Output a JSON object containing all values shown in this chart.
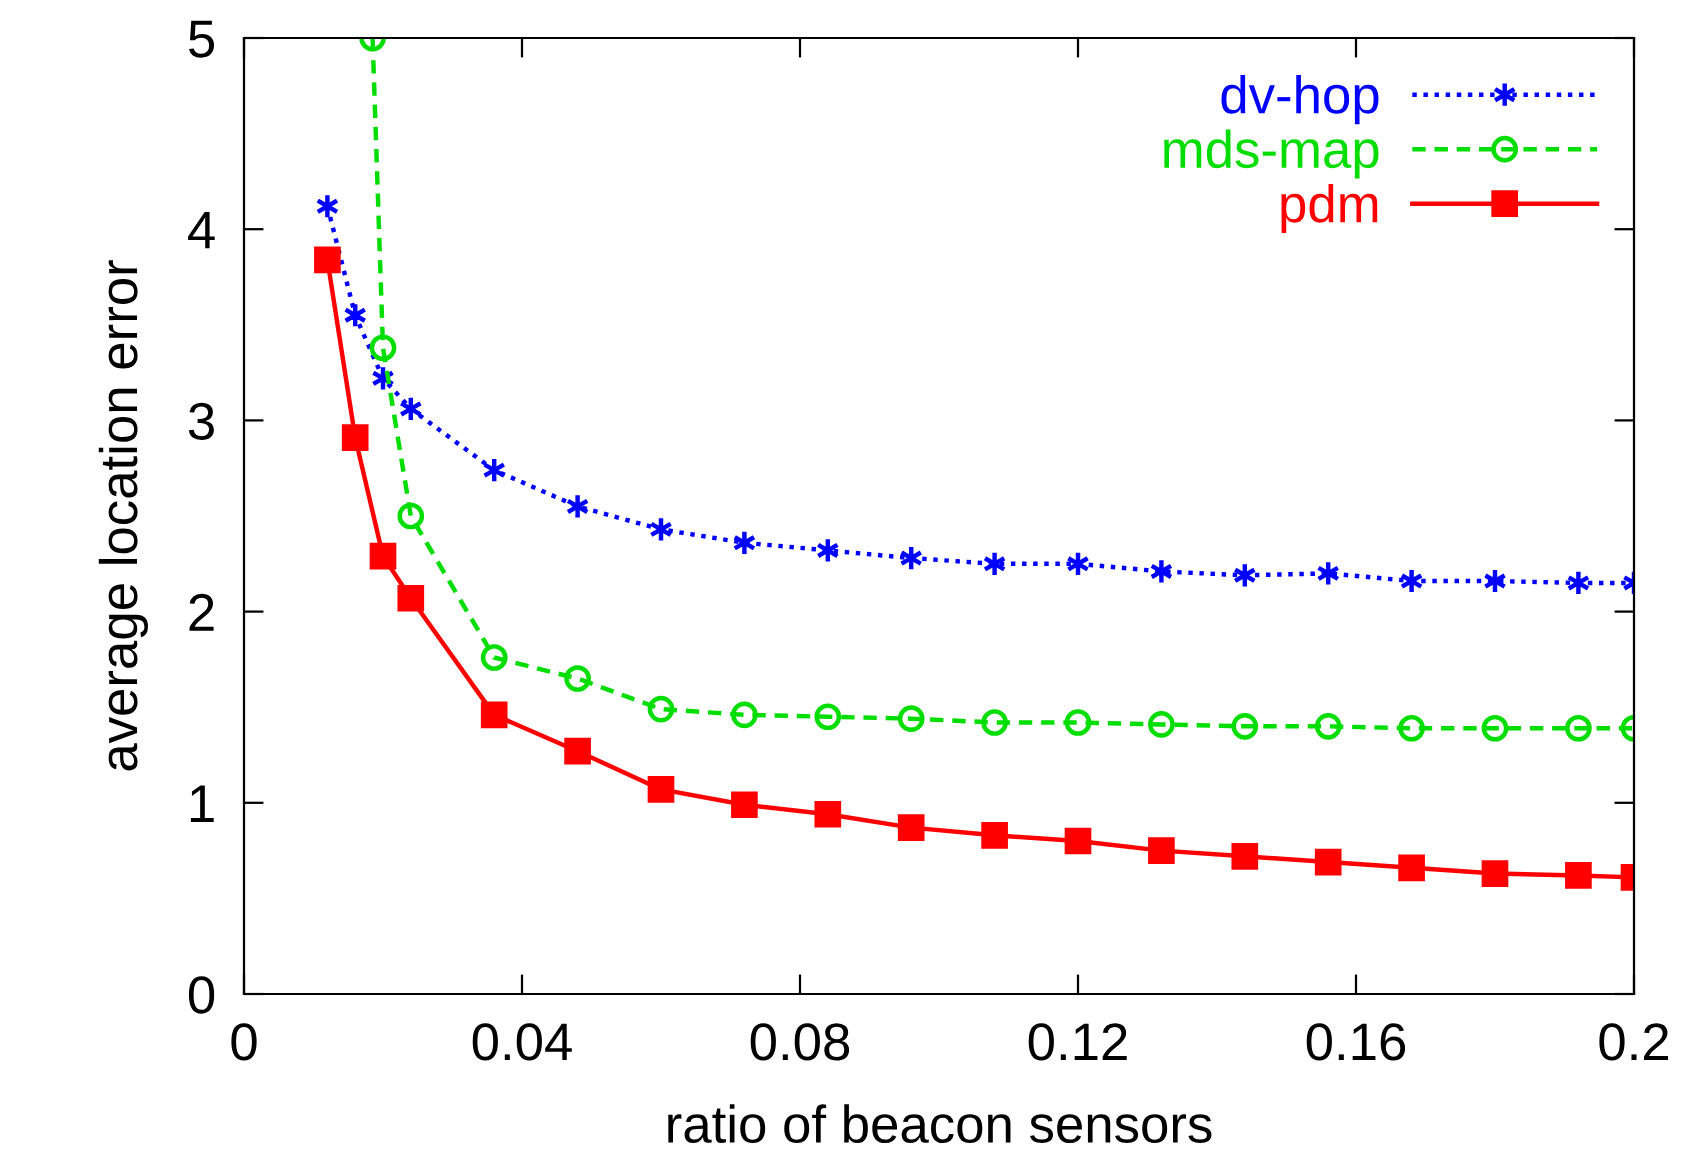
{
  "chart_data": {
    "type": "line",
    "xlabel": "ratio of beacon sensors",
    "ylabel": "average location error",
    "x": [
      0.012,
      0.016,
      0.02,
      0.024,
      0.036,
      0.048,
      0.06,
      0.072,
      0.084,
      0.096,
      0.108,
      0.12,
      0.132,
      0.144,
      0.156,
      0.168,
      0.18,
      0.192,
      0.2
    ],
    "series": [
      {
        "name": "dv-hop",
        "color": "#0000ff",
        "marker": "cross",
        "line_style": "dotted",
        "values": [
          4.12,
          3.55,
          3.22,
          3.06,
          2.74,
          2.55,
          2.43,
          2.36,
          2.32,
          2.28,
          2.25,
          2.25,
          2.21,
          2.19,
          2.2,
          2.16,
          2.16,
          2.15,
          2.15
        ]
      },
      {
        "name": "mds-map",
        "color": "#00dd00",
        "marker": "circle",
        "line_style": "dashed",
        "x": [
          0.0185,
          0.02,
          0.024,
          0.036,
          0.048,
          0.06,
          0.072,
          0.084,
          0.096,
          0.108,
          0.12,
          0.132,
          0.144,
          0.156,
          0.168,
          0.18,
          0.192,
          0.2
        ],
        "values": [
          5,
          3.38,
          2.5,
          1.76,
          1.65,
          1.49,
          1.46,
          1.45,
          1.44,
          1.42,
          1.42,
          1.41,
          1.4,
          1.4,
          1.39,
          1.39,
          1.39,
          1.39
        ]
      },
      {
        "name": "pdm",
        "color": "#ff0000",
        "marker": "square",
        "line_style": "solid",
        "values": [
          3.84,
          2.91,
          2.29,
          2.07,
          1.46,
          1.27,
          1.07,
          0.99,
          0.94,
          0.87,
          0.83,
          0.8,
          0.75,
          0.72,
          0.69,
          0.66,
          0.63,
          0.62,
          0.61
        ]
      }
    ],
    "xlim": [
      0,
      0.2
    ],
    "ylim": [
      0,
      5
    ],
    "xticks": [
      0,
      0.04,
      0.08,
      0.12,
      0.16,
      0.2
    ],
    "yticks": [
      0,
      1,
      2,
      3,
      4,
      5
    ],
    "grid": false,
    "legend": "top right"
  }
}
